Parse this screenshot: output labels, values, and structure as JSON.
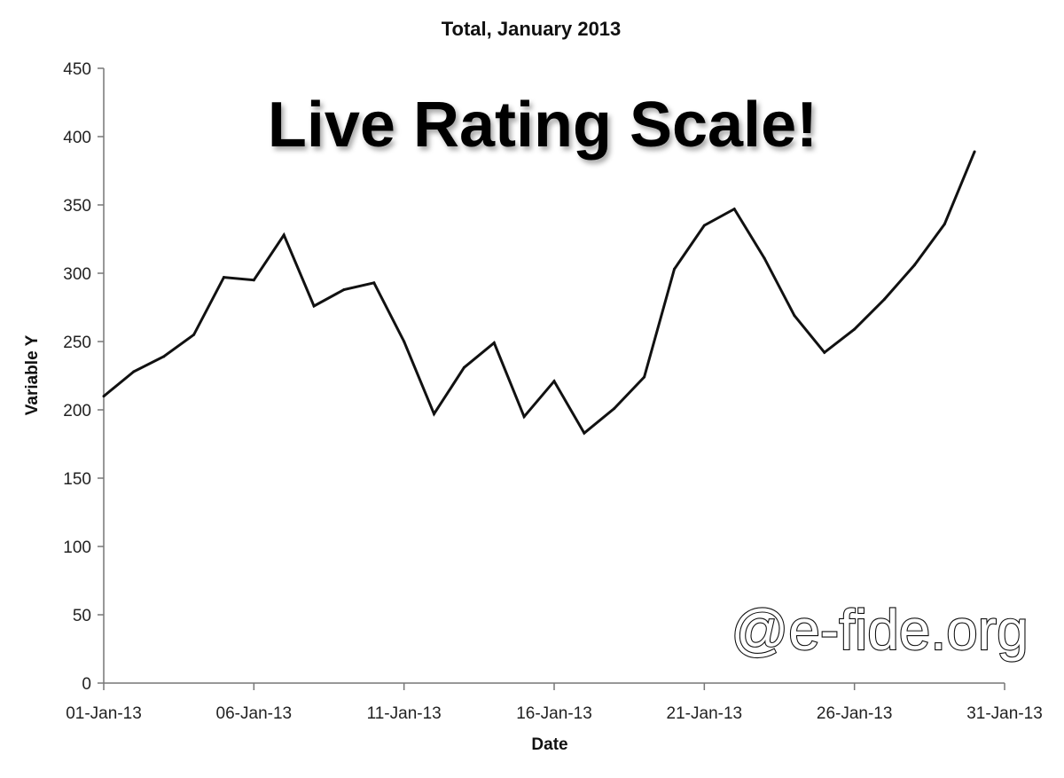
{
  "chart_data": {
    "type": "line",
    "title": "Total, January 2013",
    "xlabel": "Date",
    "ylabel": "Variable Y",
    "ylim": [
      0,
      450
    ],
    "yticks": [
      0,
      50,
      100,
      150,
      200,
      250,
      300,
      350,
      400,
      450
    ],
    "xlim_days": [
      1,
      31
    ],
    "xticks": [
      {
        "day": 1,
        "label": "01-Jan-13"
      },
      {
        "day": 6,
        "label": "06-Jan-13"
      },
      {
        "day": 11,
        "label": "11-Jan-13"
      },
      {
        "day": 16,
        "label": "16-Jan-13"
      },
      {
        "day": 21,
        "label": "21-Jan-13"
      },
      {
        "day": 26,
        "label": "26-Jan-13"
      },
      {
        "day": 31,
        "label": "31-Jan-13"
      }
    ],
    "grid": false,
    "series": [
      {
        "name": "Total",
        "color": "#111111",
        "x": [
          1,
          2,
          3,
          4,
          5,
          6,
          7,
          8,
          9,
          10,
          11,
          12,
          13,
          14,
          15,
          16,
          17,
          18,
          19,
          20,
          21,
          22,
          23,
          24,
          25,
          26,
          27,
          28,
          29,
          30
        ],
        "values": [
          210,
          228,
          239,
          255,
          297,
          295,
          328,
          276,
          288,
          293,
          250,
          197,
          231,
          249,
          195,
          221,
          183,
          201,
          224,
          303,
          335,
          347,
          311,
          269,
          242,
          259,
          281,
          306,
          336,
          389
        ]
      }
    ]
  },
  "overlay": {
    "headline": "Live Rating Scale!",
    "watermark": "@e-fide.org"
  }
}
